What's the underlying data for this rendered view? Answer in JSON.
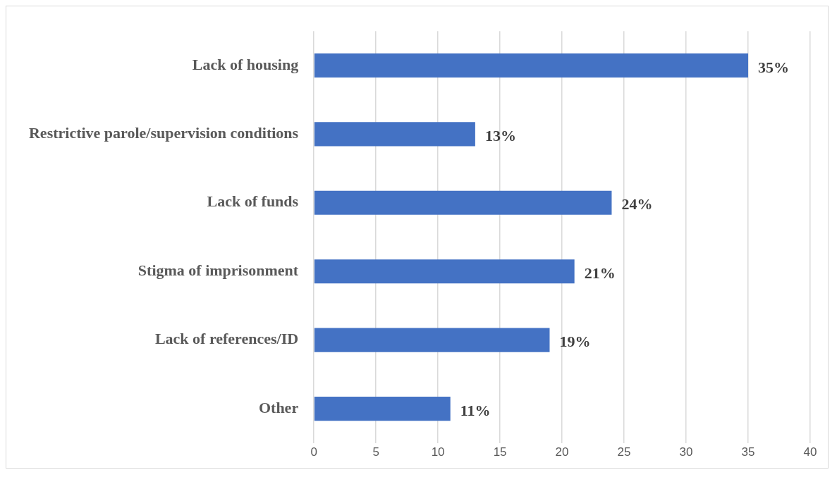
{
  "chart_data": {
    "type": "bar",
    "orientation": "horizontal",
    "categories": [
      "Lack of housing",
      "Restrictive parole/supervision conditions",
      "Lack of funds",
      "Stigma of imprisonment",
      "Lack of references/ID",
      "Other"
    ],
    "values": [
      35,
      13,
      24,
      21,
      19,
      11
    ],
    "value_labels": [
      "35%",
      "13%",
      "24%",
      "21%",
      "19%",
      "11%"
    ],
    "color": "#4472c4",
    "xlim": [
      0,
      40
    ],
    "xticks": [
      0,
      5,
      10,
      15,
      20,
      25,
      30,
      35,
      40
    ],
    "grid": "x",
    "legend": false
  }
}
